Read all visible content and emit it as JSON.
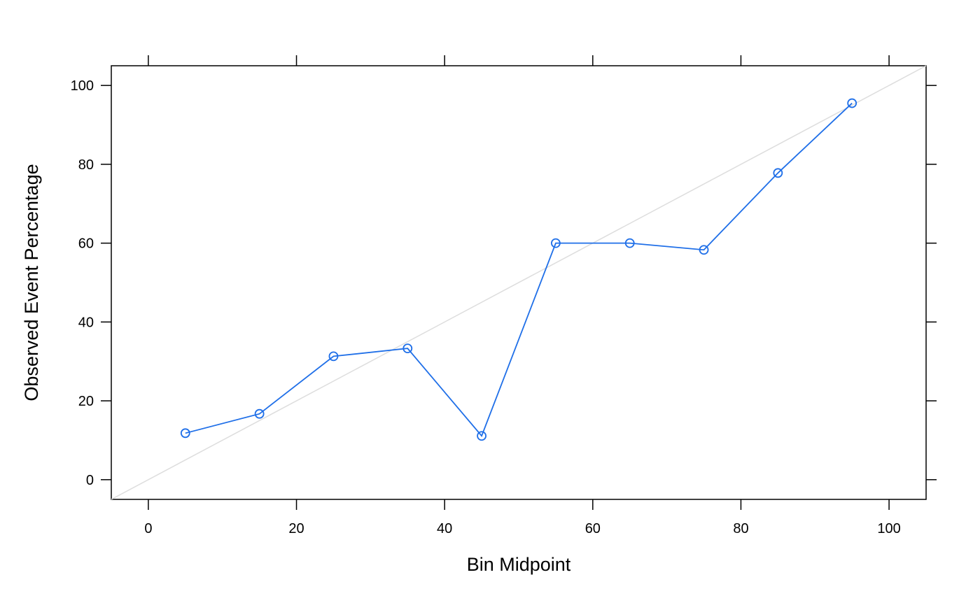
{
  "chart_data": {
    "type": "line",
    "xlabel": "Bin Midpoint",
    "ylabel": "Observed Event Percentage",
    "xlim": [
      -5,
      105
    ],
    "ylim": [
      -5,
      105
    ],
    "x_ticks": [
      0,
      20,
      40,
      60,
      80,
      100
    ],
    "y_ticks": [
      0,
      20,
      40,
      60,
      80,
      100
    ],
    "reference_line": {
      "from": [
        -5,
        -5
      ],
      "to": [
        105,
        105
      ],
      "color": "#dddddd"
    },
    "series": [
      {
        "color": "#1f6fe8",
        "marker": "open-circle",
        "x": [
          5,
          15,
          25,
          35,
          45,
          55,
          65,
          75,
          85,
          95
        ],
        "y": [
          11.8,
          16.7,
          31.3,
          33.3,
          11.1,
          60.0,
          60.0,
          58.3,
          77.8,
          95.5
        ]
      }
    ]
  }
}
